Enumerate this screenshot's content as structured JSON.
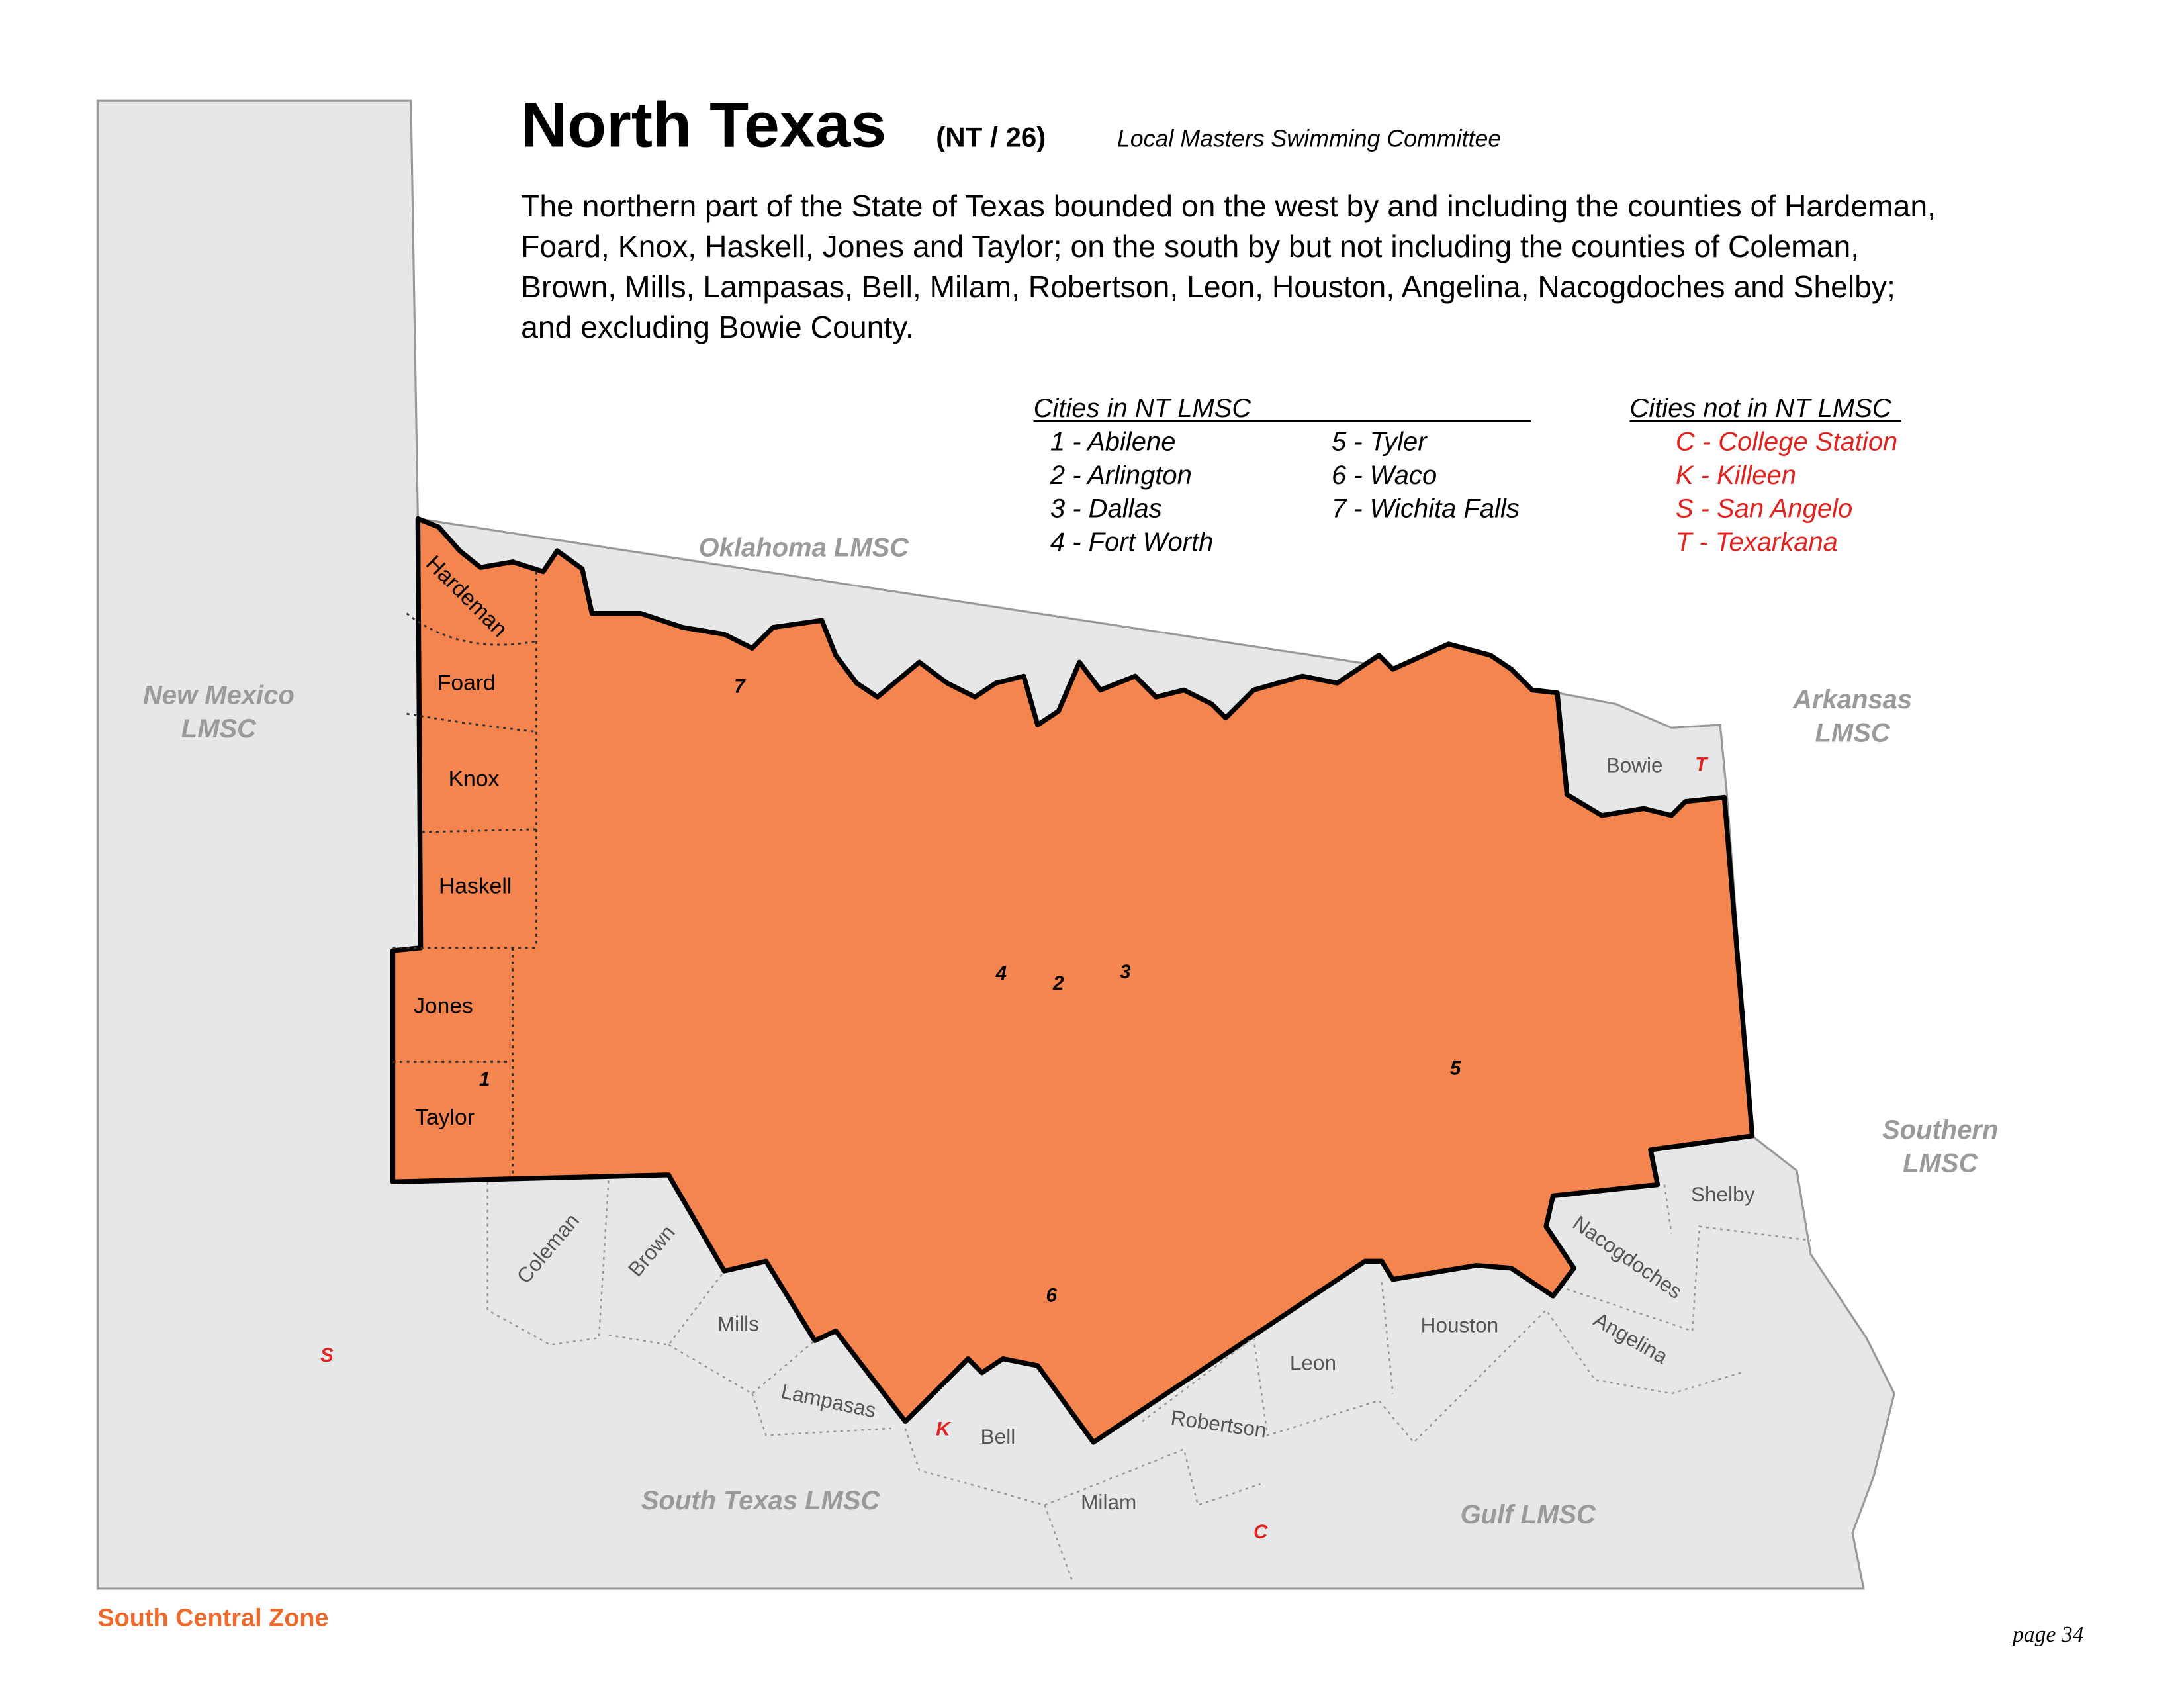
{
  "header": {
    "title": "North Texas",
    "code": "(NT / 26)",
    "committee": "Local Masters Swimming Committee",
    "description": [
      "The northern part of the State of Texas bounded on the west by and including the counties of Hardeman,",
      "Foard, Knox, Haskell, Jones and Taylor; on the south by but not including the counties of Coleman,",
      "Brown, Mills, Lampasas, Bell, Milam, Robertson, Leon, Houston, Angelina, Nacogdoches and Shelby;",
      "and excluding Bowie County."
    ]
  },
  "legend": {
    "in_title": "Cities in NT LMSC",
    "in_cities": [
      "1 - Abilene",
      "2 - Arlington",
      "3 - Dallas",
      "4 - Fort Worth",
      "5 - Tyler",
      "6 - Waco",
      "7 - Wichita Falls"
    ],
    "out_title": "Cities not in NT LMSC",
    "out_cities": [
      "C - College Station",
      "K - Killeen",
      "S - San Angelo",
      "T - Texarkana"
    ]
  },
  "map": {
    "regions": [
      [
        "Oklahoma LMSC"
      ],
      [
        "New Mexico",
        "LMSC"
      ],
      [
        "Arkansas",
        "LMSC"
      ],
      [
        "Southern",
        "LMSC"
      ],
      [
        "South Texas LMSC"
      ],
      [
        "Gulf LMSC"
      ]
    ],
    "nt_counties": [
      "Hardeman",
      "Foard",
      "Knox",
      "Haskell",
      "Jones",
      "Taylor"
    ],
    "other_counties": [
      "Bowie",
      "Coleman",
      "Brown",
      "Mills",
      "Lampasas",
      "Bell",
      "Milam",
      "Robertson",
      "Leon",
      "Houston",
      "Angelina",
      "Nacogdoches",
      "Shelby"
    ],
    "city_markers": [
      "1",
      "2",
      "3",
      "4",
      "5",
      "6",
      "7",
      "C",
      "K",
      "S",
      "T"
    ]
  },
  "footer": {
    "zone": "South Central Zone",
    "page": "page 34"
  }
}
